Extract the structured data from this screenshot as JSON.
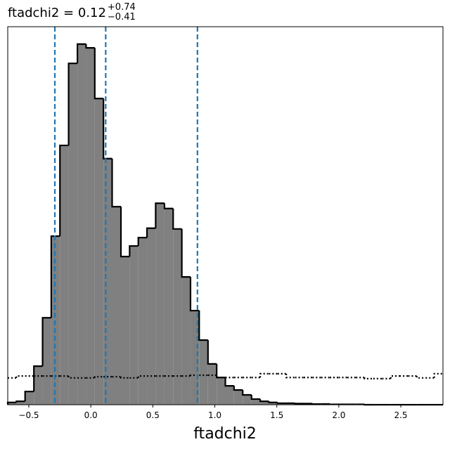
{
  "chart_data": {
    "type": "histogram",
    "title": "ftadchi2 = 0.12",
    "title_sup": "+0.74",
    "title_sub": "−0.41",
    "xlabel": "ftadchi2",
    "bins": [
      -0.67,
      -0.6,
      -0.53,
      -0.459,
      -0.389,
      -0.319,
      -0.249,
      -0.179,
      -0.108,
      -0.038,
      0.032,
      0.102,
      0.172,
      0.243,
      0.313,
      0.383,
      0.453,
      0.523,
      0.594,
      0.664,
      0.734,
      0.804,
      0.874,
      0.945,
      1.015,
      1.085,
      1.155,
      1.225,
      1.296,
      1.366,
      1.436,
      1.506,
      1.576,
      1.647,
      1.717,
      1.787,
      1.857,
      1.927,
      1.998,
      2.068,
      2.138,
      2.208,
      2.278,
      2.349,
      2.419,
      2.489,
      2.559,
      2.629,
      2.7,
      2.77,
      2.84
    ],
    "values": [
      0.6,
      0.9,
      3.5,
      10.2,
      23.0,
      44.6,
      68.6,
      90.3,
      95.4,
      94.4,
      81.0,
      65.1,
      52.4,
      39.2,
      42.0,
      44.2,
      46.7,
      53.3,
      51.9,
      46.5,
      33.8,
      24.9,
      17.1,
      10.8,
      7.2,
      5.0,
      3.9,
      2.6,
      1.5,
      0.9,
      0.6,
      0.4,
      0.4,
      0.3,
      0.3,
      0.2,
      0.2,
      0.1,
      0.1,
      0.1,
      0.1,
      0,
      0,
      0,
      0,
      0,
      0,
      0,
      0,
      0
    ],
    "prior_values": [
      7.1,
      7.6,
      7.6,
      7.6,
      7.6,
      7.6,
      7.6,
      7.1,
      7.1,
      7.1,
      7.4,
      7.4,
      7.4,
      7.1,
      7.1,
      7.6,
      7.6,
      7.6,
      7.6,
      7.6,
      7.6,
      7.8,
      7.8,
      7.8,
      7.2,
      7.2,
      7.2,
      7.2,
      7.2,
      8.2,
      8.2,
      8.2,
      7.2,
      7.2,
      7.2,
      7.2,
      7.2,
      7.2,
      7.2,
      7.2,
      7.2,
      6.9,
      6.9,
      6.9,
      7.6,
      7.6,
      7.6,
      7.1,
      7.1,
      8.2
    ],
    "quantiles": [
      -0.29,
      0.12,
      0.86
    ],
    "color": "#808080",
    "edge_color": "#000000",
    "quantile_color": "#1f77b4",
    "xlim": [
      -0.67,
      2.84
    ],
    "ylim": [
      0,
      100
    ],
    "xticks": [
      {
        "value": -0.5,
        "label": "−0.5"
      },
      {
        "value": 0,
        "label": "0.0"
      },
      {
        "value": 0.5,
        "label": "0.5"
      },
      {
        "value": 1,
        "label": "1.0"
      },
      {
        "value": 1.5,
        "label": "1.5"
      },
      {
        "value": 2,
        "label": "2.0"
      },
      {
        "value": 2.5,
        "label": "2.5"
      }
    ]
  }
}
